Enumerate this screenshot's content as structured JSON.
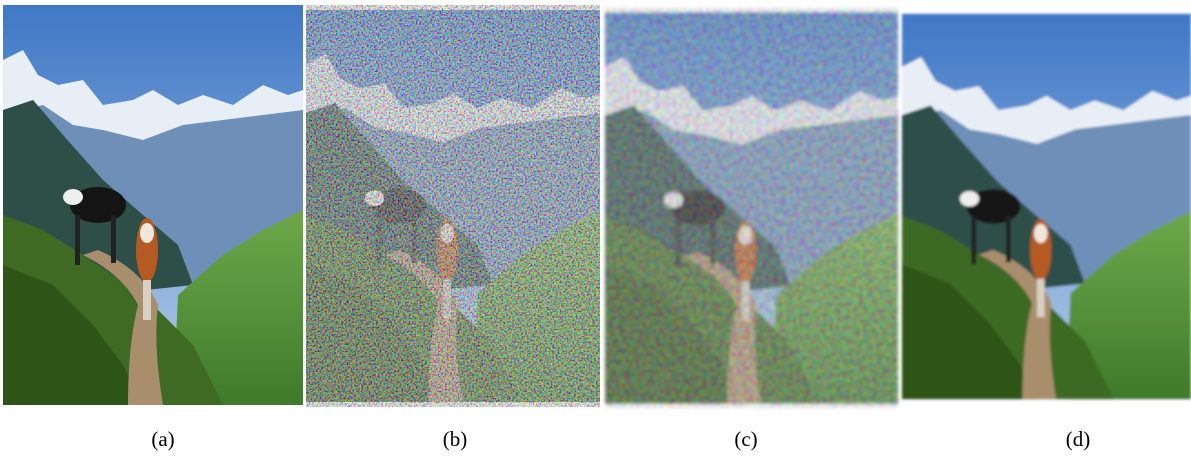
{
  "panels": [
    {
      "caption": "(a)"
    },
    {
      "caption": "(b)"
    },
    {
      "caption": "(c)"
    },
    {
      "caption": "(d)"
    }
  ]
}
